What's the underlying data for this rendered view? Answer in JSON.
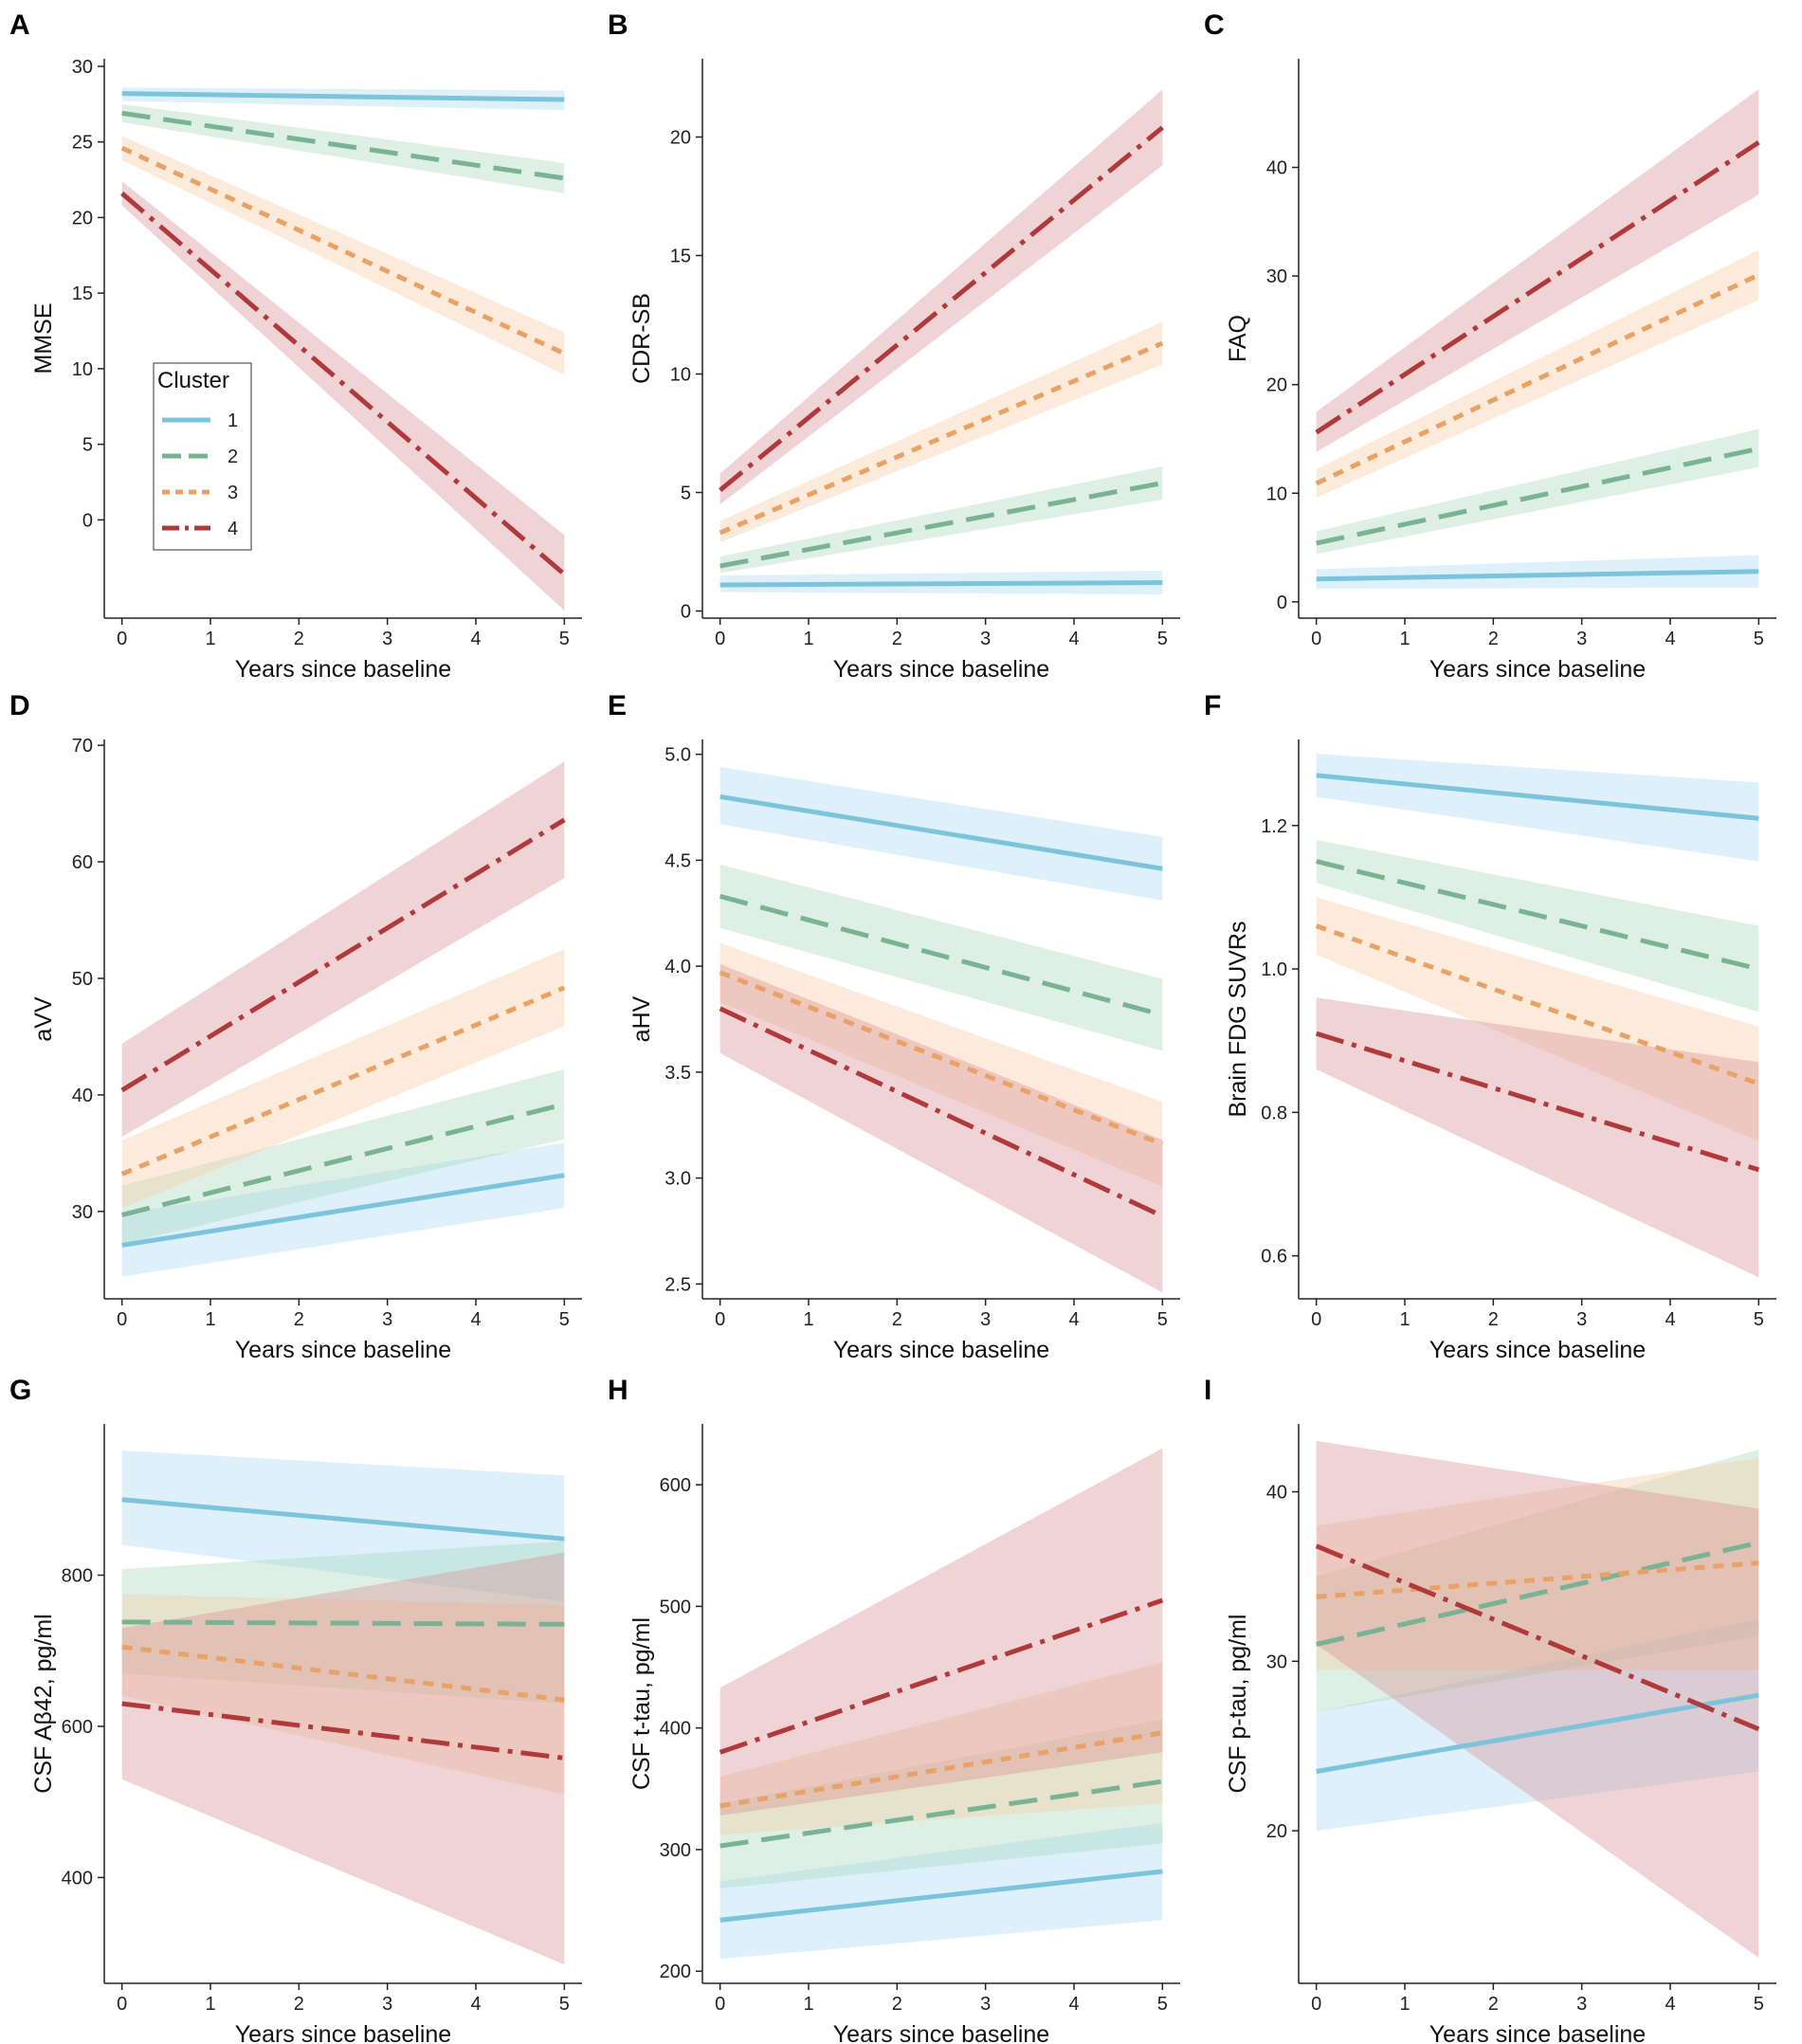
{
  "figure": {
    "cluster_styles": [
      {
        "name": "1",
        "color": "#7cc4dc",
        "band": "#a8daf1",
        "dash": "none"
      },
      {
        "name": "2",
        "color": "#79b394",
        "band": "#a9d8ba",
        "dash": "30,14"
      },
      {
        "name": "3",
        "color": "#e8a267",
        "band": "#f8caa0",
        "dash": "11,9"
      },
      {
        "name": "4",
        "color": "#b0393b",
        "band": "#d88e91",
        "dash": "30,9,5,9"
      }
    ],
    "legend": {
      "title": "Cluster",
      "entries": [
        "1",
        "2",
        "3",
        "4"
      ]
    }
  },
  "chart_data": [
    {
      "panel": "A",
      "type": "line",
      "xlabel": "Years since baseline",
      "ylabel": "MMSE",
      "xlim": [
        -0.2,
        5.2
      ],
      "ylim": [
        -6.5,
        30.5
      ],
      "xticks": [
        0,
        1,
        2,
        3,
        4,
        5
      ],
      "yticks": [
        0,
        5,
        10,
        15,
        20,
        25,
        30
      ],
      "series": [
        {
          "name": "1",
          "x": [
            0,
            5
          ],
          "y": [
            28.2,
            27.8
          ],
          "lower": [
            27.7,
            27.1
          ],
          "upper": [
            28.6,
            28.4
          ]
        },
        {
          "name": "2",
          "x": [
            0,
            5
          ],
          "y": [
            26.9,
            22.6
          ],
          "lower": [
            26.3,
            21.6
          ],
          "upper": [
            27.5,
            23.6
          ]
        },
        {
          "name": "3",
          "x": [
            0,
            5
          ],
          "y": [
            24.6,
            11.0
          ],
          "lower": [
            23.8,
            9.6
          ],
          "upper": [
            25.4,
            12.4
          ]
        },
        {
          "name": "4",
          "x": [
            0,
            5
          ],
          "y": [
            21.6,
            -3.6
          ],
          "lower": [
            20.8,
            -6.0
          ],
          "upper": [
            22.4,
            -1.0
          ]
        }
      ]
    },
    {
      "panel": "B",
      "type": "line",
      "xlabel": "Years since baseline",
      "ylabel": "CDR-SB",
      "xlim": [
        -0.2,
        5.2
      ],
      "ylim": [
        -0.3,
        23.3
      ],
      "xticks": [
        0,
        1,
        2,
        3,
        4,
        5
      ],
      "yticks": [
        0,
        5,
        10,
        15,
        20
      ],
      "series": [
        {
          "name": "1",
          "x": [
            0,
            5
          ],
          "y": [
            1.1,
            1.2
          ],
          "lower": [
            0.8,
            0.7
          ],
          "upper": [
            1.5,
            1.7
          ]
        },
        {
          "name": "2",
          "x": [
            0,
            5
          ],
          "y": [
            1.9,
            5.4
          ],
          "lower": [
            1.6,
            4.7
          ],
          "upper": [
            2.3,
            6.1
          ]
        },
        {
          "name": "3",
          "x": [
            0,
            5
          ],
          "y": [
            3.3,
            11.3
          ],
          "lower": [
            2.9,
            10.4
          ],
          "upper": [
            3.8,
            12.2
          ]
        },
        {
          "name": "4",
          "x": [
            0,
            5
          ],
          "y": [
            5.1,
            20.4
          ],
          "lower": [
            4.5,
            18.8
          ],
          "upper": [
            5.8,
            22.0
          ]
        }
      ]
    },
    {
      "panel": "C",
      "type": "line",
      "xlabel": "Years since baseline",
      "ylabel": "FAQ",
      "xlim": [
        -0.2,
        5.2
      ],
      "ylim": [
        -1.5,
        50.0
      ],
      "xticks": [
        0,
        1,
        2,
        3,
        4,
        5
      ],
      "yticks": [
        0,
        10,
        20,
        30,
        40
      ],
      "series": [
        {
          "name": "1",
          "x": [
            0,
            5
          ],
          "y": [
            2.1,
            2.8
          ],
          "lower": [
            1.2,
            1.3
          ],
          "upper": [
            3.0,
            4.3
          ]
        },
        {
          "name": "2",
          "x": [
            0,
            5
          ],
          "y": [
            5.4,
            14.1
          ],
          "lower": [
            4.4,
            12.4
          ],
          "upper": [
            6.5,
            15.9
          ]
        },
        {
          "name": "3",
          "x": [
            0,
            5
          ],
          "y": [
            10.9,
            30.1
          ],
          "lower": [
            9.6,
            27.8
          ],
          "upper": [
            12.2,
            32.4
          ]
        },
        {
          "name": "4",
          "x": [
            0,
            5
          ],
          "y": [
            15.6,
            42.3
          ],
          "lower": [
            13.8,
            37.5
          ],
          "upper": [
            17.5,
            47.2
          ]
        }
      ]
    },
    {
      "panel": "D",
      "type": "line",
      "xlabel": "Years since baseline",
      "ylabel": "aVV",
      "xlim": [
        -0.2,
        5.2
      ],
      "ylim": [
        22.5,
        70.5
      ],
      "xticks": [
        0,
        1,
        2,
        3,
        4,
        5
      ],
      "yticks": [
        30,
        40,
        50,
        60,
        70
      ],
      "series": [
        {
          "name": "1",
          "x": [
            0,
            5
          ],
          "y": [
            27.1,
            33.1
          ],
          "lower": [
            24.4,
            30.3
          ],
          "upper": [
            29.8,
            35.9
          ]
        },
        {
          "name": "2",
          "x": [
            0,
            5
          ],
          "y": [
            29.7,
            39.2
          ],
          "lower": [
            27.2,
            36.2
          ],
          "upper": [
            32.2,
            42.2
          ]
        },
        {
          "name": "3",
          "x": [
            0,
            5
          ],
          "y": [
            33.2,
            49.2
          ],
          "lower": [
            30.3,
            45.9
          ],
          "upper": [
            36.1,
            52.5
          ]
        },
        {
          "name": "4",
          "x": [
            0,
            5
          ],
          "y": [
            40.4,
            63.6
          ],
          "lower": [
            36.4,
            58.6
          ],
          "upper": [
            44.4,
            68.6
          ]
        }
      ]
    },
    {
      "panel": "E",
      "type": "line",
      "xlabel": "Years since baseline",
      "ylabel": "aHV",
      "xlim": [
        -0.2,
        5.2
      ],
      "ylim": [
        2.43,
        5.07
      ],
      "xticks": [
        0,
        1,
        2,
        3,
        4,
        5
      ],
      "yticks": [
        2.5,
        3.0,
        3.5,
        4.0,
        4.5,
        5.0
      ],
      "ytick_labels": [
        "2.5",
        "3.0",
        "3.5",
        "4.0",
        "4.5",
        "5.0"
      ],
      "series": [
        {
          "name": "1",
          "x": [
            0,
            5
          ],
          "y": [
            4.8,
            4.46
          ],
          "lower": [
            4.67,
            4.31
          ],
          "upper": [
            4.94,
            4.61
          ]
        },
        {
          "name": "2",
          "x": [
            0,
            5
          ],
          "y": [
            4.33,
            3.77
          ],
          "lower": [
            4.18,
            3.6
          ],
          "upper": [
            4.48,
            3.94
          ]
        },
        {
          "name": "3",
          "x": [
            0,
            5
          ],
          "y": [
            3.97,
            3.16
          ],
          "lower": [
            3.83,
            2.96
          ],
          "upper": [
            4.11,
            3.36
          ]
        },
        {
          "name": "4",
          "x": [
            0,
            5
          ],
          "y": [
            3.8,
            2.82
          ],
          "lower": [
            3.59,
            2.46
          ],
          "upper": [
            4.01,
            3.18
          ]
        }
      ]
    },
    {
      "panel": "F",
      "type": "line",
      "xlabel": "Years since baseline",
      "ylabel": "Brain FDG SUVRs",
      "xlim": [
        -0.2,
        5.2
      ],
      "ylim": [
        0.54,
        1.32
      ],
      "xticks": [
        0,
        1,
        2,
        3,
        4,
        5
      ],
      "yticks": [
        0.6,
        0.8,
        1.0,
        1.2
      ],
      "ytick_labels": [
        "0.6",
        "0.8",
        "1.0",
        "1.2"
      ],
      "series": [
        {
          "name": "1",
          "x": [
            0,
            5
          ],
          "y": [
            1.27,
            1.21
          ],
          "lower": [
            1.24,
            1.15
          ],
          "upper": [
            1.3,
            1.26
          ]
        },
        {
          "name": "2",
          "x": [
            0,
            5
          ],
          "y": [
            1.15,
            1.0
          ],
          "lower": [
            1.12,
            0.94
          ],
          "upper": [
            1.18,
            1.06
          ]
        },
        {
          "name": "3",
          "x": [
            0,
            5
          ],
          "y": [
            1.06,
            0.84
          ],
          "lower": [
            1.02,
            0.76
          ],
          "upper": [
            1.1,
            0.92
          ]
        },
        {
          "name": "4",
          "x": [
            0,
            5
          ],
          "y": [
            0.91,
            0.72
          ],
          "lower": [
            0.86,
            0.57
          ],
          "upper": [
            0.96,
            0.87
          ]
        }
      ]
    },
    {
      "panel": "G",
      "type": "line",
      "xlabel": "Years since baseline",
      "ylabel": "CSF Aβ42, pg/ml",
      "xlim": [
        -0.2,
        5.2
      ],
      "ylim": [
        260,
        1000
      ],
      "xticks": [
        0,
        1,
        2,
        3,
        4,
        5
      ],
      "yticks": [
        400,
        600,
        800
      ],
      "series": [
        {
          "name": "1",
          "x": [
            0,
            5
          ],
          "y": [
            900,
            848
          ],
          "lower": [
            840,
            765
          ],
          "upper": [
            965,
            932
          ]
        },
        {
          "name": "2",
          "x": [
            0,
            5
          ],
          "y": [
            738,
            735
          ],
          "lower": [
            670,
            630
          ],
          "upper": [
            808,
            845
          ]
        },
        {
          "name": "3",
          "x": [
            0,
            5
          ],
          "y": [
            705,
            635
          ],
          "lower": [
            640,
            510
          ],
          "upper": [
            775,
            760
          ]
        },
        {
          "name": "4",
          "x": [
            0,
            5
          ],
          "y": [
            630,
            558
          ],
          "lower": [
            530,
            285
          ],
          "upper": [
            730,
            830
          ]
        }
      ]
    },
    {
      "panel": "H",
      "type": "line",
      "xlabel": "Years since baseline",
      "ylabel": "CSF t-tau, pg/ml",
      "xlim": [
        -0.2,
        5.2
      ],
      "ylim": [
        190,
        650
      ],
      "xticks": [
        0,
        1,
        2,
        3,
        4,
        5
      ],
      "yticks": [
        200,
        300,
        400,
        500,
        600
      ],
      "series": [
        {
          "name": "1",
          "x": [
            0,
            5
          ],
          "y": [
            242,
            282
          ],
          "lower": [
            210,
            242
          ],
          "upper": [
            274,
            322
          ]
        },
        {
          "name": "2",
          "x": [
            0,
            5
          ],
          "y": [
            303,
            356
          ],
          "lower": [
            268,
            305
          ],
          "upper": [
            338,
            407
          ]
        },
        {
          "name": "3",
          "x": [
            0,
            5
          ],
          "y": [
            336,
            396
          ],
          "lower": [
            312,
            338
          ],
          "upper": [
            360,
            454
          ]
        },
        {
          "name": "4",
          "x": [
            0,
            5
          ],
          "y": [
            380,
            505
          ],
          "lower": [
            328,
            380
          ],
          "upper": [
            433,
            630
          ]
        }
      ]
    },
    {
      "panel": "I",
      "type": "line",
      "xlabel": "Years since baseline",
      "ylabel": "CSF p-tau, pg/ml",
      "xlim": [
        -0.2,
        5.2
      ],
      "ylim": [
        11,
        44
      ],
      "xticks": [
        0,
        1,
        2,
        3,
        4,
        5
      ],
      "yticks": [
        20,
        30,
        40
      ],
      "series": [
        {
          "name": "1",
          "x": [
            0,
            5
          ],
          "y": [
            23.5,
            28.0
          ],
          "lower": [
            20.0,
            23.5
          ],
          "upper": [
            27.0,
            32.5
          ]
        },
        {
          "name": "2",
          "x": [
            0,
            5
          ],
          "y": [
            31.0,
            37.0
          ],
          "lower": [
            27.0,
            31.5
          ],
          "upper": [
            35.0,
            42.5
          ]
        },
        {
          "name": "3",
          "x": [
            0,
            5
          ],
          "y": [
            33.8,
            35.8
          ],
          "lower": [
            29.5,
            29.5
          ],
          "upper": [
            38.0,
            42.0
          ]
        },
        {
          "name": "4",
          "x": [
            0,
            5
          ],
          "y": [
            36.8,
            26.0
          ],
          "lower": [
            31.0,
            12.5
          ],
          "upper": [
            43.0,
            39.0
          ]
        }
      ]
    }
  ]
}
